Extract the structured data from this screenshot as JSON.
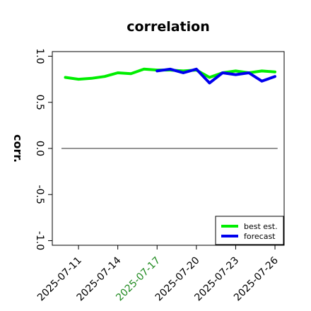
{
  "chart_data": {
    "type": "line",
    "title": "correlation",
    "ylabel": "corr.",
    "xlabel": "",
    "ylim": [
      -1.05,
      1.05
    ],
    "yticks": [
      -1.0,
      -0.5,
      0.0,
      0.5,
      1.0
    ],
    "ytick_labels": [
      "-1.0",
      "-0.5",
      "0.0",
      "0.5",
      "1.0"
    ],
    "xticks": [
      "2025-07-11",
      "2025-07-14",
      "2025-07-17",
      "2025-07-20",
      "2025-07-23",
      "2025-07-26"
    ],
    "xtick_highlight": "2025-07-17",
    "xtick_highlight_color": "#228b22",
    "grid": false,
    "legend_position": "lower-right",
    "reference_line": {
      "y": 0.0,
      "color": "#555555"
    },
    "series": [
      {
        "name": "best est.",
        "color": "#00ee00",
        "x": [
          "2025-07-10",
          "2025-07-11",
          "2025-07-12",
          "2025-07-13",
          "2025-07-14",
          "2025-07-15",
          "2025-07-16",
          "2025-07-17",
          "2025-07-18",
          "2025-07-19",
          "2025-07-20",
          "2025-07-21",
          "2025-07-22",
          "2025-07-23",
          "2025-07-24",
          "2025-07-25",
          "2025-07-26"
        ],
        "values": [
          0.77,
          0.75,
          0.76,
          0.78,
          0.82,
          0.81,
          0.86,
          0.85,
          0.85,
          0.84,
          0.85,
          0.77,
          0.82,
          0.84,
          0.82,
          0.84,
          0.83
        ]
      },
      {
        "name": "forecast",
        "color": "#0000ee",
        "x": [
          "2025-07-17",
          "2025-07-18",
          "2025-07-19",
          "2025-07-20",
          "2025-07-21",
          "2025-07-22",
          "2025-07-23",
          "2025-07-24",
          "2025-07-25",
          "2025-07-26"
        ],
        "values": [
          0.84,
          0.86,
          0.82,
          0.86,
          0.71,
          0.82,
          0.8,
          0.82,
          0.73,
          0.78
        ]
      }
    ]
  }
}
